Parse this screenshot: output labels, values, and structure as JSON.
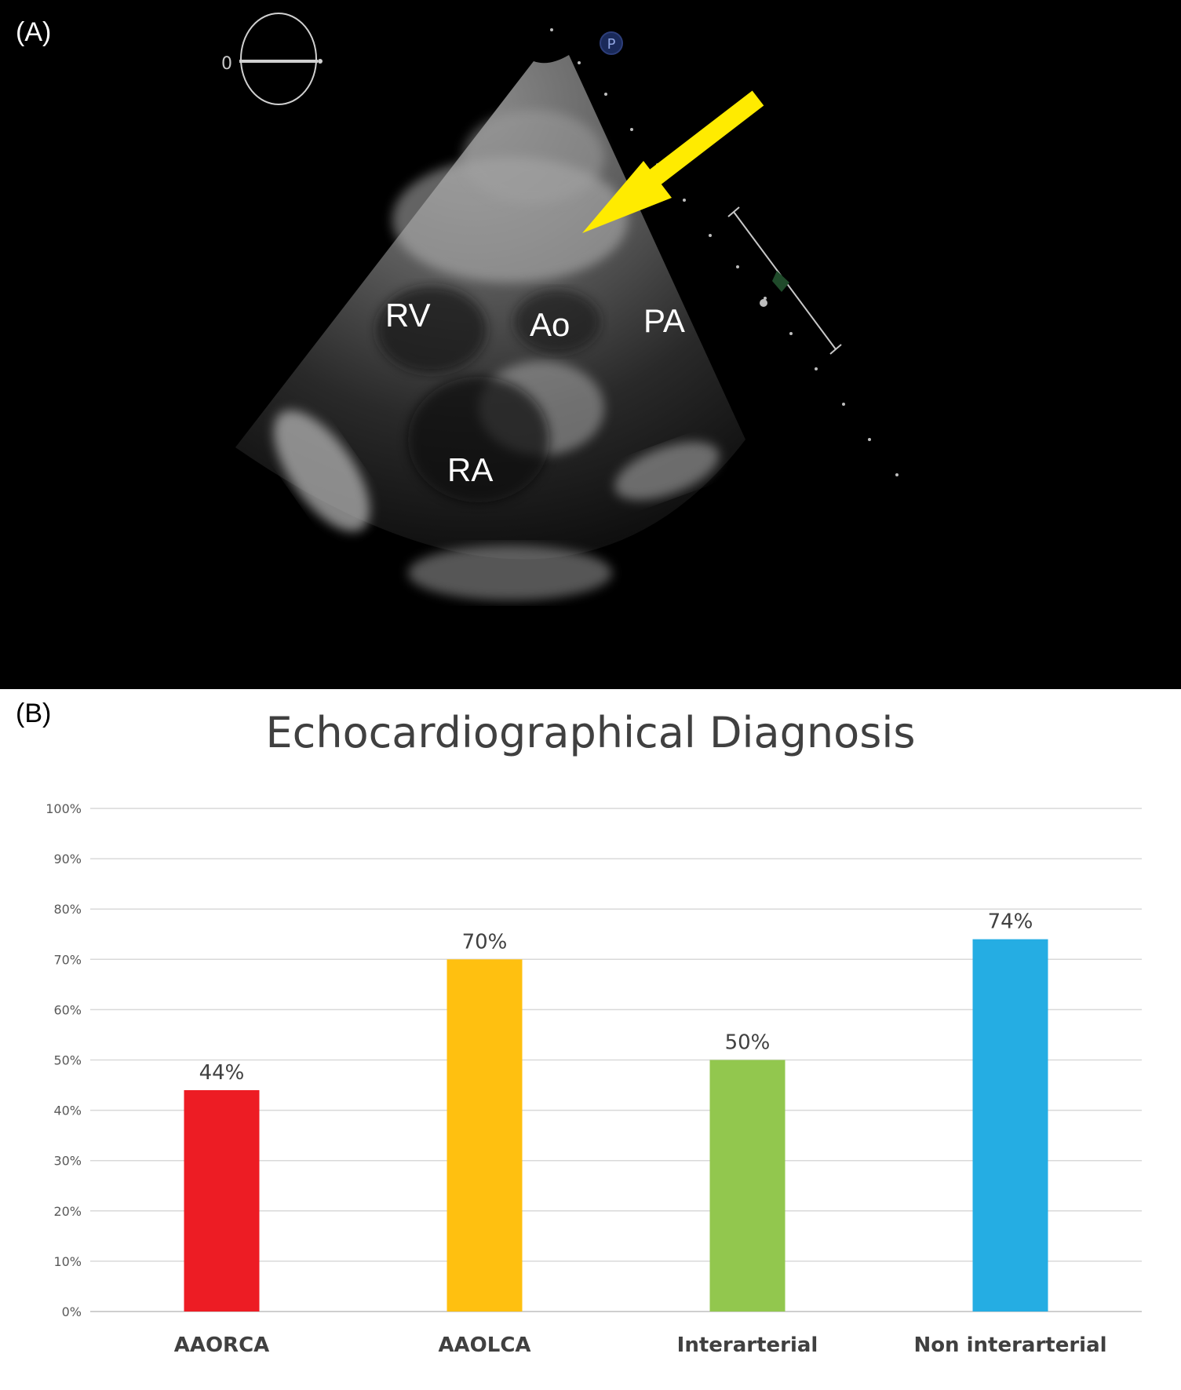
{
  "panel_a": {
    "tag": "(A)",
    "angle_indicator": "0",
    "probe_marker": "P",
    "labels": {
      "rv": "RV",
      "ao": "Ao",
      "pa": "PA",
      "ra": "RA"
    },
    "arrow_color": "#FFEB00"
  },
  "panel_b": {
    "tag": "(B)"
  },
  "chart_data": {
    "type": "bar",
    "title": "Echocardiographical Diagnosis",
    "categories": [
      "AAORCA",
      "AAOLCA",
      "Interarterial",
      "Non interarterial"
    ],
    "values": [
      44,
      70,
      50,
      74
    ],
    "value_labels": [
      "44%",
      "70%",
      "50%",
      "74%"
    ],
    "colors": [
      "#ED1C24",
      "#FFC010",
      "#92C74E",
      "#25ADE3"
    ],
    "ylim": [
      0,
      100
    ],
    "y_ticks": [
      "0%",
      "10%",
      "20%",
      "30%",
      "40%",
      "50%",
      "60%",
      "70%",
      "80%",
      "90%",
      "100%"
    ],
    "xlabel": "",
    "ylabel": "",
    "grid": true,
    "legend": "none"
  }
}
